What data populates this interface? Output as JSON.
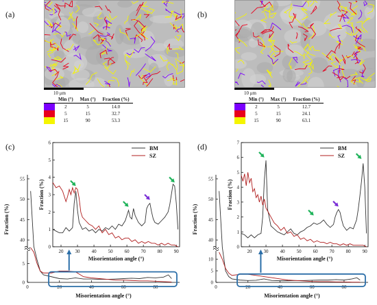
{
  "panels": {
    "a": {
      "label": "(a)",
      "scalebar": "10 μm",
      "legend": {
        "headers": [
          "Min (°)",
          "Max (°)",
          "Fraction (%)"
        ],
        "rows": [
          {
            "min": "2",
            "max": "5",
            "fraction": "14.0"
          },
          {
            "min": "5",
            "max": "15",
            "fraction": "32.7"
          },
          {
            "min": "15",
            "max": "90",
            "fraction": "53.3"
          }
        ]
      }
    },
    "b": {
      "label": "(b)",
      "scalebar": "10 μm",
      "legend": {
        "headers": [
          "Min (°)",
          "Max (°)",
          "Fraction (%)"
        ],
        "rows": [
          {
            "min": "2",
            "max": "5",
            "fraction": "12.7"
          },
          {
            "min": "5",
            "max": "15",
            "fraction": "24.1"
          },
          {
            "min": "15",
            "max": "90",
            "fraction": "63.1"
          }
        ]
      }
    },
    "c": {
      "label": "(c)"
    },
    "d": {
      "label": "(d)"
    }
  },
  "boundary_colors": [
    "#7b00ff",
    "#e8001c",
    "#f5f500"
  ],
  "colors": {
    "BM": "#333333",
    "SZ": "#b01c1c",
    "arrow_green": "#1fb35a",
    "arrow_purple": "#7a2fd6",
    "box": "#2b6ea8"
  },
  "chart_data": [
    {
      "id": "c",
      "type": "line",
      "xlabel": "Misorientation angle (°)",
      "ylabel": "Fraction (%)",
      "xlim": [
        0,
        95
      ],
      "xticks": [
        0,
        20,
        40,
        60,
        80
      ],
      "yticks_upper": [
        40,
        45,
        50,
        55
      ],
      "yticks_lower": [
        0,
        5
      ],
      "ylim_lower": [
        0,
        8
      ],
      "ylim_upper": [
        38,
        56
      ],
      "series": [
        {
          "name": "BM",
          "x": [
            2,
            4,
            6,
            8,
            10,
            15,
            20,
            25,
            30,
            35,
            40,
            45,
            50,
            55,
            60,
            65,
            70,
            75,
            80,
            85,
            88,
            90
          ],
          "y": [
            52,
            20,
            6,
            3,
            2,
            1.5,
            1,
            0.9,
            1.2,
            0.9,
            0.9,
            0.8,
            0.8,
            0.9,
            1,
            1.1,
            1,
            1.3,
            1.2,
            1.4,
            2,
            1
          ]
        },
        {
          "name": "SZ",
          "x": [
            2,
            4,
            6,
            8,
            10,
            15,
            20,
            25,
            30,
            35,
            40,
            45,
            50,
            55,
            60,
            65,
            70,
            75,
            80,
            85,
            90
          ],
          "y": [
            11,
            8,
            5,
            3,
            2.5,
            2.5,
            3,
            3,
            2.8,
            1.5,
            1.2,
            1,
            0.8,
            0.6,
            0.6,
            0.5,
            0.4,
            0.4,
            0.3,
            0.2,
            0.1
          ]
        }
      ],
      "inset": {
        "xlabel": "Misorientation angle (°)",
        "ylabel": "Fraction (%)",
        "xlim": [
          15,
          92
        ],
        "ylim": [
          0,
          6
        ],
        "xticks": [
          20,
          30,
          40,
          50,
          60,
          70,
          80,
          90
        ],
        "yticks": [
          0,
          1,
          2,
          3,
          4,
          5,
          6
        ],
        "legend": [
          "BM",
          "SZ"
        ],
        "series": [
          {
            "name": "BM",
            "x": [
              15,
              17,
              19,
              21,
              23,
              25,
              27,
              28,
              29,
              30,
              31,
              33,
              35,
              37,
              39,
              41,
              43,
              45,
              47,
              49,
              51,
              53,
              55,
              57,
              59,
              60,
              61,
              62,
              63,
              64,
              65,
              67,
              69,
              71,
              72,
              73,
              74,
              75,
              76,
              77,
              79,
              81,
              83,
              85,
              86,
              87,
              88,
              89,
              90,
              91
            ],
            "y": [
              1,
              0.9,
              0.8,
              0.8,
              1.1,
              0.9,
              1.1,
              2.5,
              3.2,
              2.1,
              1.4,
              1,
              1.1,
              0.9,
              1,
              0.8,
              1,
              0.9,
              1.1,
              1,
              1.2,
              1,
              1.3,
              1.2,
              1.5,
              1.8,
              2.1,
              1.7,
              1.6,
              2.2,
              1.8,
              1.4,
              1.2,
              1.4,
              2.2,
              2.4,
              2.5,
              2,
              1.6,
              1.4,
              1.3,
              1.5,
              1.7,
              2,
              2.4,
              3,
              3.6,
              3.5,
              2.5,
              1
            ]
          },
          {
            "name": "SZ",
            "x": [
              15,
              17,
              19,
              21,
              23,
              24,
              25,
              26,
              27,
              28,
              29,
              30,
              31,
              32,
              33,
              35,
              37,
              39,
              41,
              43,
              45,
              47,
              49,
              51,
              53,
              55,
              57,
              59,
              61,
              63,
              65,
              67,
              69,
              71,
              73,
              75,
              77,
              79,
              81,
              83,
              85,
              87,
              89,
              91
            ],
            "y": [
              3.7,
              3.4,
              3.5,
              3.2,
              2.6,
              2.9,
              3.3,
              3,
              3.4,
              3.1,
              3.4,
              3.3,
              2.8,
              2,
              1.7,
              1.5,
              1.3,
              1.2,
              1,
              1.2,
              0.8,
              1,
              0.7,
              0.8,
              0.5,
              0.6,
              0.4,
              0.5,
              0.5,
              0.3,
              0.4,
              0.2,
              0.3,
              0.2,
              0.3,
              0.2,
              0.2,
              0.1,
              0.2,
              0.1,
              0.2,
              0.1,
              0.1,
              0
            ]
          }
        ],
        "arrows": [
          {
            "x": 29,
            "y": 3.5,
            "color": "green"
          },
          {
            "x": 61,
            "y": 2.3,
            "color": "green"
          },
          {
            "x": 74,
            "y": 2.7,
            "color": "purple"
          },
          {
            "x": 89,
            "y": 3.7,
            "color": "green"
          }
        ]
      }
    },
    {
      "id": "d",
      "type": "line",
      "xlabel": "Misorientation angle (°)",
      "ylabel": "Fraction (%)",
      "xlim": [
        0,
        95
      ],
      "xticks": [
        0,
        20,
        40,
        60,
        80
      ],
      "yticks_upper": [
        40,
        45,
        50,
        55
      ],
      "yticks_lower": [
        0,
        5,
        10
      ],
      "ylim_lower": [
        0,
        13
      ],
      "ylim_upper": [
        38,
        56
      ],
      "series": [
        {
          "name": "BM",
          "x": [
            2,
            4,
            6,
            8,
            10,
            15,
            20,
            25,
            30,
            35,
            40,
            45,
            50,
            55,
            60,
            65,
            70,
            75,
            80,
            85,
            88,
            90
          ],
          "y": [
            52,
            18,
            5,
            2.5,
            1.5,
            1,
            0.8,
            0.9,
            1.5,
            0.8,
            0.7,
            0.7,
            0.8,
            0.8,
            0.9,
            1,
            1,
            1.2,
            1,
            1.5,
            2,
            1
          ]
        },
        {
          "name": "SZ",
          "x": [
            2,
            4,
            6,
            8,
            10,
            15,
            20,
            25,
            30,
            35,
            40,
            45,
            50,
            55,
            60,
            65,
            70,
            75,
            80,
            85,
            90
          ],
          "y": [
            13,
            10,
            6,
            4,
            3,
            3.5,
            3.5,
            3,
            2.5,
            2,
            1.5,
            1,
            0.8,
            0.6,
            0.4,
            0.3,
            0.3,
            0.2,
            0.2,
            0.1,
            0.1
          ]
        }
      ],
      "inset": {
        "xlabel": "Misorientation angle (°)",
        "ylabel": "Fraction (%)",
        "xlim": [
          15,
          92
        ],
        "ylim": [
          0,
          7
        ],
        "xticks": [
          20,
          30,
          40,
          50,
          60,
          70,
          80,
          90
        ],
        "yticks": [
          0,
          1,
          2,
          3,
          4,
          5,
          6,
          7
        ],
        "legend": [
          "BM",
          "SZ"
        ],
        "series": [
          {
            "name": "BM",
            "x": [
              15,
              17,
              19,
              21,
              23,
              25,
              27,
              28,
              29,
              30,
              31,
              33,
              35,
              37,
              39,
              41,
              43,
              45,
              47,
              49,
              51,
              53,
              55,
              57,
              59,
              61,
              63,
              65,
              67,
              69,
              71,
              72,
              73,
              74,
              75,
              76,
              77,
              79,
              81,
              83,
              85,
              86,
              87,
              88,
              89,
              90,
              91
            ],
            "y": [
              0.9,
              0.8,
              0.6,
              0.8,
              0.6,
              0.8,
              0.9,
              2,
              4.5,
              5.8,
              2.5,
              1.4,
              1.2,
              1,
              0.9,
              0.8,
              1,
              1.2,
              0.9,
              0.8,
              1,
              1.1,
              1.3,
              1.4,
              1.6,
              1.5,
              1.6,
              1.8,
              1.5,
              1.3,
              1.5,
              2,
              2.3,
              2.5,
              2.3,
              1.8,
              1.4,
              1.1,
              1.3,
              1.2,
              1.8,
              2.5,
              3.4,
              4.4,
              5.6,
              4,
              0.9
            ]
          },
          {
            "name": "SZ",
            "x": [
              15,
              16,
              17,
              18,
              19,
              20,
              21,
              22,
              23,
              24,
              25,
              26,
              27,
              28,
              29,
              30,
              31,
              33,
              35,
              37,
              39,
              41,
              43,
              45,
              47,
              49,
              51,
              53,
              55,
              57,
              59,
              61,
              63,
              65,
              67,
              69,
              71,
              73,
              75,
              77,
              79,
              81,
              83,
              85,
              87,
              89,
              91
            ],
            "y": [
              4.8,
              4.4,
              4.9,
              4.1,
              5.0,
              4.3,
              4.6,
              3.7,
              3.9,
              3.3,
              3.5,
              3.0,
              3.4,
              2.8,
              3.2,
              2.6,
              2.4,
              2,
              1.6,
              1.4,
              1.1,
              1.3,
              0.9,
              1,
              0.7,
              0.8,
              0.5,
              0.6,
              0.4,
              0.5,
              0.3,
              0.4,
              0.3,
              0.3,
              0.2,
              0.3,
              0.2,
              0.2,
              0.1,
              0.2,
              0.1,
              0.2,
              0.1,
              0.1,
              0.1,
              0.1,
              0
            ]
          }
        ],
        "arrows": [
          {
            "x": 29,
            "y": 6.0,
            "color": "green"
          },
          {
            "x": 59,
            "y": 2.1,
            "color": "green"
          },
          {
            "x": 74,
            "y": 2.7,
            "color": "purple"
          },
          {
            "x": 88,
            "y": 5.9,
            "color": "green"
          }
        ]
      }
    }
  ]
}
